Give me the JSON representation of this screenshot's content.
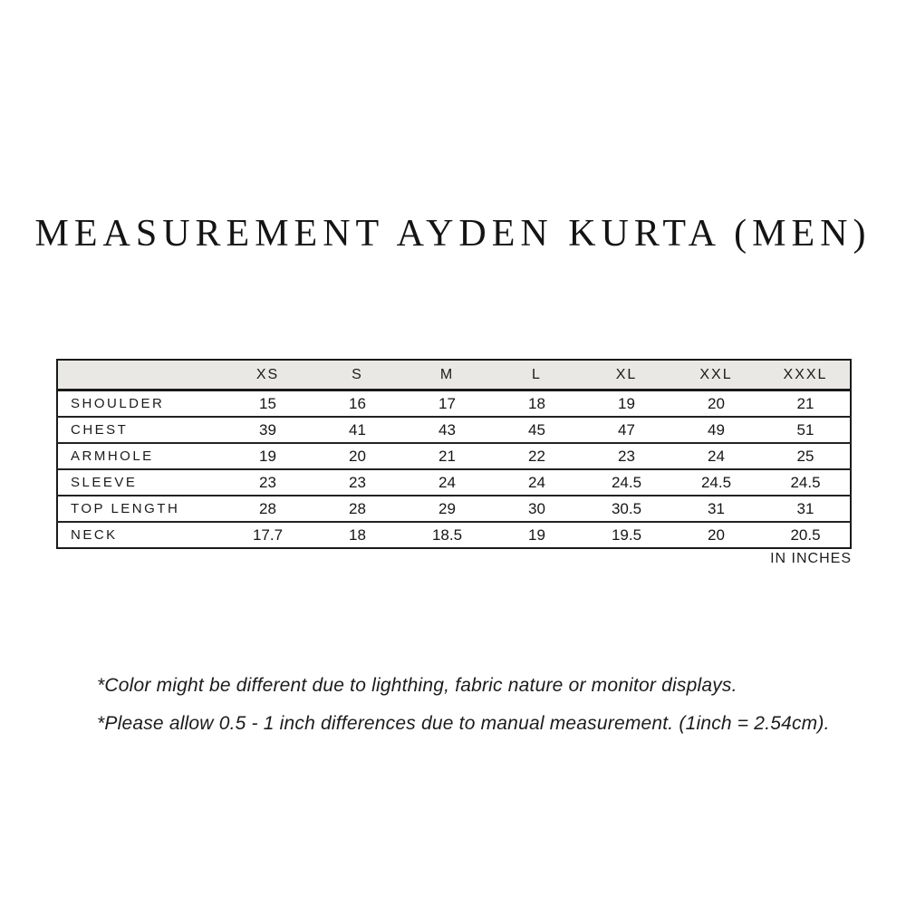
{
  "title": "MEASUREMENT AYDEN KURTA (MEN)",
  "chart_data": {
    "type": "table",
    "title": "MEASUREMENT AYDEN KURTA (MEN)",
    "unit_note": "IN INCHES",
    "columns": [
      "XS",
      "S",
      "M",
      "L",
      "XL",
      "XXL",
      "XXXL"
    ],
    "rows": [
      {
        "label": "SHOULDER",
        "values": [
          "15",
          "16",
          "17",
          "18",
          "19",
          "20",
          "21"
        ]
      },
      {
        "label": "CHEST",
        "values": [
          "39",
          "41",
          "43",
          "45",
          "47",
          "49",
          "51"
        ]
      },
      {
        "label": "ARMHOLE",
        "values": [
          "19",
          "20",
          "21",
          "22",
          "23",
          "24",
          "25"
        ]
      },
      {
        "label": "SLEEVE",
        "values": [
          "23",
          "23",
          "24",
          "24",
          "24.5",
          "24.5",
          "24.5"
        ]
      },
      {
        "label": "TOP LENGTH",
        "values": [
          "28",
          "28",
          "29",
          "30",
          "30.5",
          "31",
          "31"
        ]
      },
      {
        "label": "NECK",
        "values": [
          "17.7",
          "18",
          "18.5",
          "19",
          "19.5",
          "20",
          "20.5"
        ]
      }
    ]
  },
  "footnotes": [
    "*Color might be different due to lighthing, fabric nature or monitor displays.",
    "*Please allow 0.5 - 1 inch differences due to manual measurement. (1inch = 2.54cm)."
  ],
  "colors": {
    "background": "#ffffff",
    "header_bg": "#e9e8e4",
    "border": "#1a1a1a",
    "text": "#1b1b1b"
  }
}
